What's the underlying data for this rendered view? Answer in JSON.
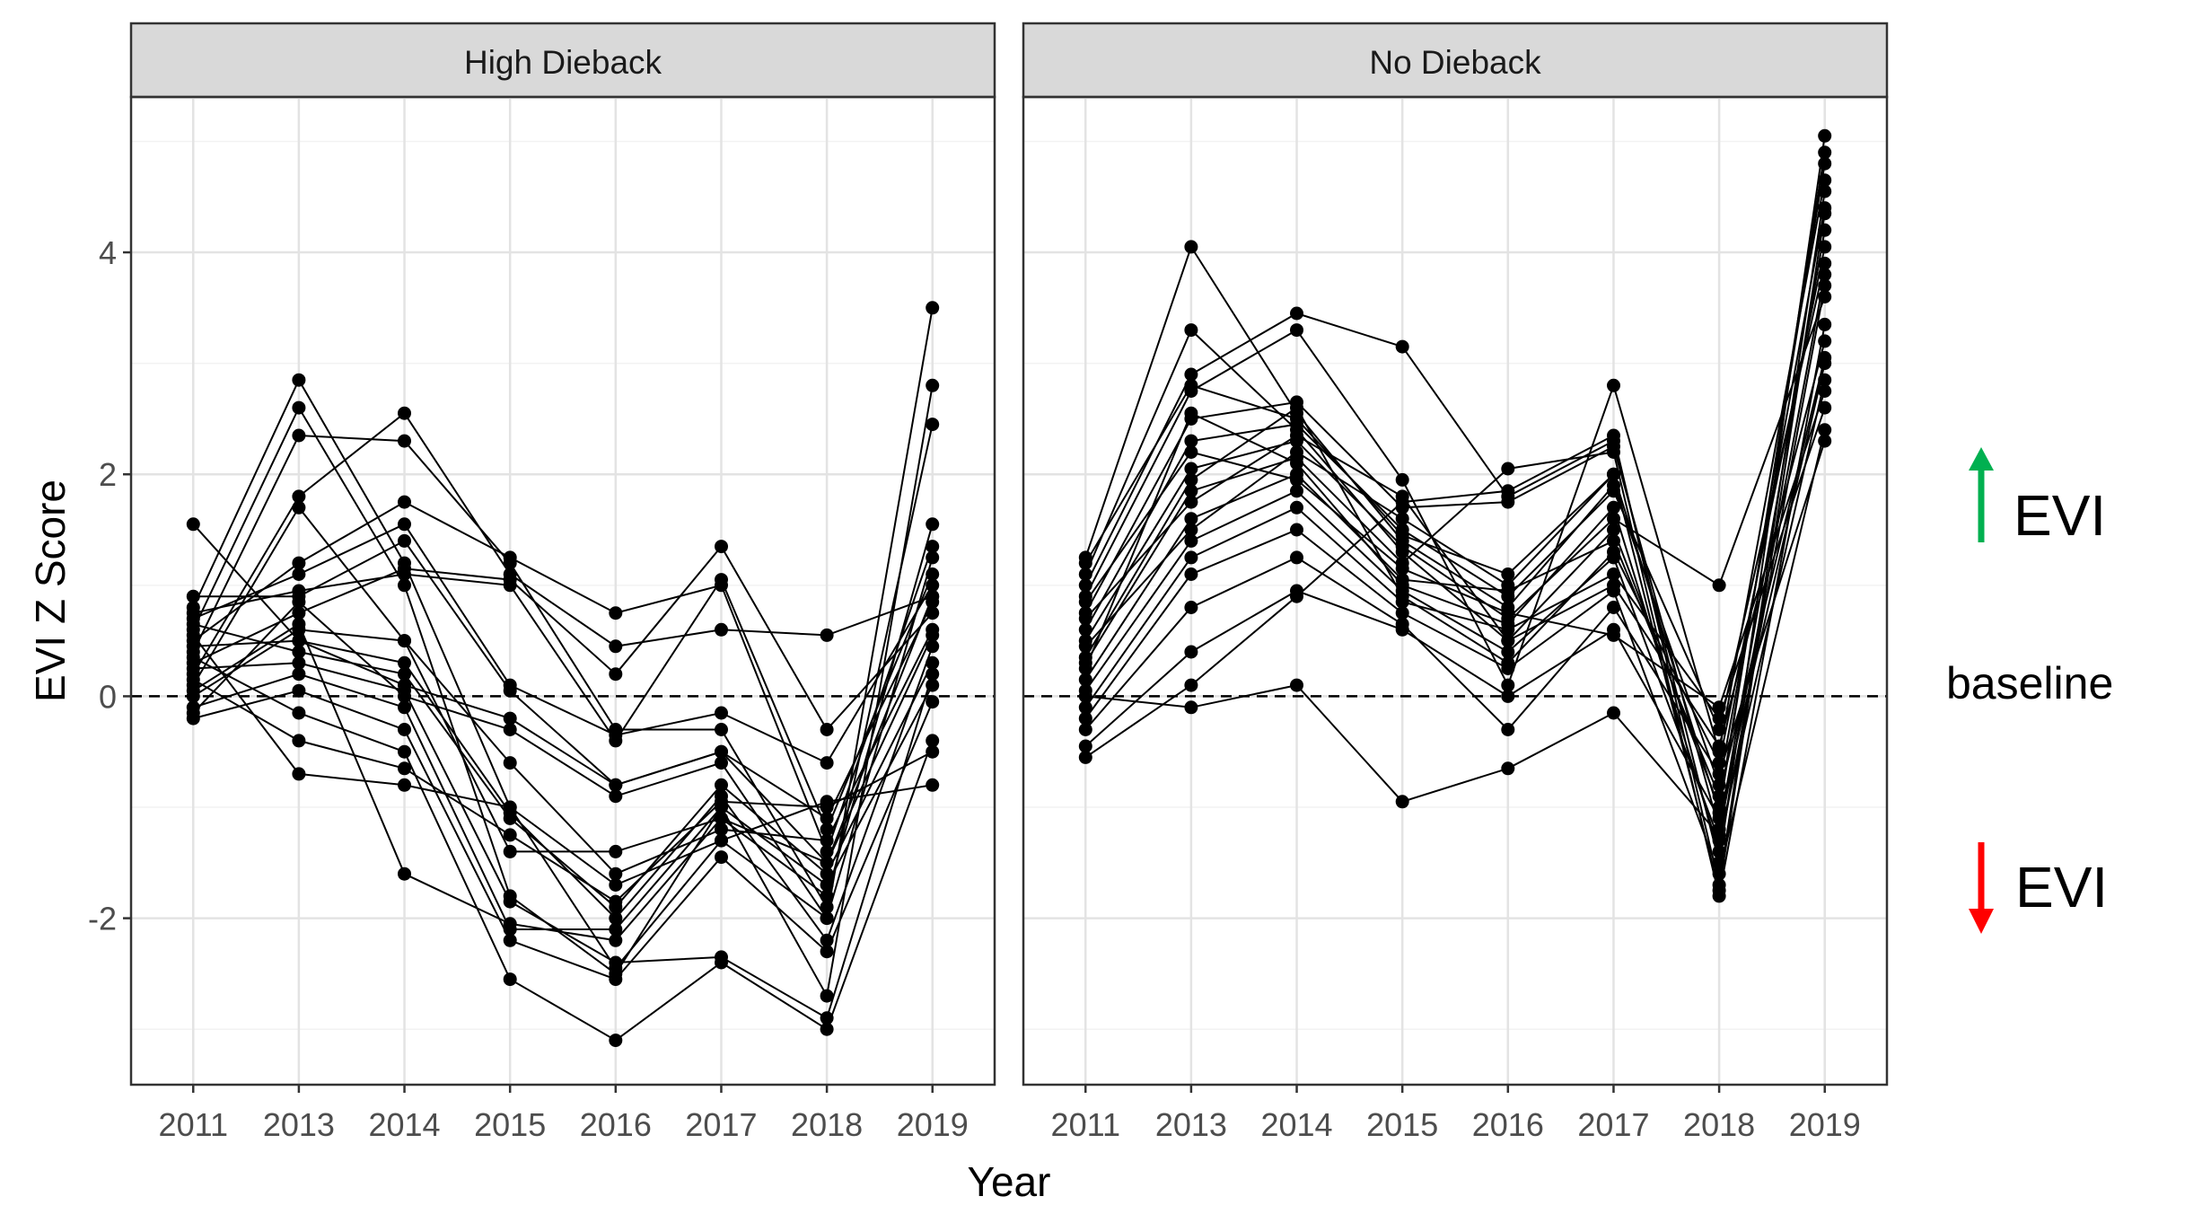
{
  "chart_data": {
    "type": "line",
    "ylabel": "EVI Z Score",
    "xlabel": "Year",
    "categories": [
      "2011",
      "2013",
      "2014",
      "2015",
      "2016",
      "2017",
      "2018",
      "2019"
    ],
    "ylim": [
      -3.5,
      5.4
    ],
    "yticks": [
      -2,
      0,
      2,
      4
    ],
    "yticks_labels": [
      "-2",
      "0",
      "2",
      "4"
    ],
    "baseline": 0,
    "grid": true,
    "line_color": "#000000",
    "marker_color": "#000000",
    "panels": [
      {
        "strip_label": "High Dieback",
        "series": [
          {
            "values": [
              1.55,
              0.5,
              0.1,
              -0.2,
              -0.8,
              -0.5,
              -1.5,
              0.9
            ]
          },
          {
            "values": [
              0.8,
              2.85,
              1.2,
              -1.0,
              -1.7,
              -1.3,
              -2.0,
              3.5
            ]
          },
          {
            "values": [
              0.6,
              2.6,
              1.0,
              -1.8,
              -2.5,
              -1.0,
              -2.7,
              2.8
            ]
          },
          {
            "values": [
              0.4,
              2.35,
              2.3,
              1.2,
              -0.3,
              -0.3,
              -1.9,
              2.45
            ]
          },
          {
            "values": [
              0.2,
              1.8,
              2.55,
              1.1,
              0.45,
              0.6,
              0.55,
              0.9
            ]
          },
          {
            "values": [
              0.1,
              1.7,
              0.5,
              -1.4,
              -1.4,
              -1.1,
              -1.8,
              1.55
            ]
          },
          {
            "values": [
              0.5,
              1.2,
              1.75,
              1.25,
              0.75,
              1.0,
              -1.4,
              1.35
            ]
          },
          {
            "values": [
              0.7,
              1.1,
              1.55,
              0.1,
              -0.35,
              -0.15,
              -0.6,
              1.0
            ]
          },
          {
            "values": [
              0.9,
              0.9,
              1.4,
              0.05,
              -0.8,
              -0.5,
              -1.1,
              0.85
            ]
          },
          {
            "values": [
              0.3,
              0.75,
              1.15,
              1.05,
              0.2,
              1.35,
              -0.3,
              0.75
            ]
          },
          {
            "values": [
              0.0,
              0.6,
              0.5,
              -0.6,
              -1.6,
              -1.2,
              -1.3,
              0.6
            ]
          },
          {
            "values": [
              0.45,
              0.5,
              0.3,
              -1.05,
              -2.0,
              -0.9,
              -2.2,
              0.45
            ]
          },
          {
            "values": [
              0.65,
              0.4,
              0.2,
              -1.1,
              -1.9,
              -0.8,
              -1.6,
              0.3
            ]
          },
          {
            "values": [
              0.25,
              0.3,
              0.05,
              -1.85,
              -2.4,
              -2.35,
              -2.9,
              0.2
            ]
          },
          {
            "values": [
              -0.1,
              0.2,
              -0.1,
              -2.1,
              -2.1,
              -1.0,
              -1.7,
              0.1
            ]
          },
          {
            "values": [
              -0.2,
              0.05,
              -0.3,
              -2.2,
              -2.55,
              -1.45,
              -2.3,
              -0.05
            ]
          },
          {
            "values": [
              0.35,
              -0.15,
              -0.5,
              -2.55,
              -3.1,
              -2.4,
              -3.0,
              -0.4
            ]
          },
          {
            "values": [
              0.15,
              -0.4,
              -0.65,
              -1.25,
              -1.85,
              -0.95,
              -1.0,
              -0.5
            ]
          },
          {
            "values": [
              0.55,
              -0.7,
              -0.8,
              -1.0,
              -2.45,
              -1.3,
              -0.95,
              -0.8
            ]
          },
          {
            "values": [
              0.75,
              0.95,
              1.1,
              1.0,
              -0.4,
              1.05,
              -1.2,
              1.1
            ]
          },
          {
            "values": [
              -0.15,
              0.85,
              0.0,
              -0.3,
              -0.9,
              -0.6,
              -2.0,
              1.25
            ]
          },
          {
            "values": [
              0.05,
              0.65,
              -1.6,
              -2.05,
              -2.2,
              -1.1,
              -1.5,
              0.55
            ]
          }
        ]
      },
      {
        "strip_label": "No Dieback",
        "series": [
          {
            "values": [
              1.25,
              4.05,
              2.55,
              1.4,
              0.8,
              1.9,
              -0.8,
              4.4
            ]
          },
          {
            "values": [
              1.1,
              3.3,
              2.4,
              1.3,
              0.5,
              1.5,
              -1.0,
              4.8
            ]
          },
          {
            "values": [
              1.0,
              2.9,
              3.45,
              3.15,
              1.8,
              2.3,
              -1.5,
              5.05
            ]
          },
          {
            "values": [
              0.9,
              2.75,
              3.3,
              1.95,
              0.1,
              2.8,
              -0.5,
              4.65
            ]
          },
          {
            "values": [
              0.75,
              2.5,
              2.65,
              1.7,
              1.75,
              2.25,
              -1.2,
              4.2
            ]
          },
          {
            "values": [
              0.6,
              2.3,
              2.45,
              1.5,
              0.9,
              1.85,
              -0.3,
              3.9
            ]
          },
          {
            "values": [
              0.5,
              2.05,
              2.3,
              1.35,
              0.7,
              1.6,
              1.0,
              3.6
            ]
          },
          {
            "values": [
              0.3,
              1.85,
              2.15,
              1.2,
              2.05,
              2.2,
              -1.8,
              3.35
            ]
          },
          {
            "values": [
              0.15,
              1.6,
              2.0,
              1.05,
              0.95,
              1.4,
              -0.9,
              3.05
            ]
          },
          {
            "values": [
              0.05,
              1.4,
              1.85,
              0.95,
              0.4,
              1.25,
              -1.3,
              2.85
            ]
          },
          {
            "values": [
              -0.1,
              1.25,
              1.7,
              0.85,
              0.6,
              1.1,
              -0.2,
              2.6
            ]
          },
          {
            "values": [
              -0.2,
              1.1,
              1.5,
              0.75,
              0.25,
              0.95,
              -1.6,
              2.4
            ]
          },
          {
            "values": [
              -0.3,
              0.8,
              1.25,
              0.65,
              -0.3,
              0.8,
              -0.7,
              2.3
            ]
          },
          {
            "values": [
              -0.45,
              0.4,
              0.95,
              0.6,
              0.0,
              0.6,
              -1.1,
              3.0
            ]
          },
          {
            "values": [
              -0.55,
              0.1,
              0.9,
              1.75,
              1.85,
              2.35,
              -1.7,
              4.55
            ]
          },
          {
            "values": [
              0.0,
              -0.1,
              0.1,
              -0.95,
              -0.65,
              -0.15,
              -1.25,
              3.8
            ]
          },
          {
            "values": [
              0.25,
              2.55,
              2.1,
              1.0,
              0.65,
              1.7,
              -1.4,
              3.7
            ]
          },
          {
            "values": [
              0.35,
              1.95,
              2.6,
              0.9,
              0.3,
              1.3,
              -0.6,
              4.05
            ]
          },
          {
            "values": [
              0.45,
              1.5,
              2.2,
              1.6,
              1.0,
              2.0,
              -1.75,
              4.35
            ]
          },
          {
            "values": [
              0.7,
              1.75,
              2.35,
              1.8,
              0.5,
              1.0,
              -0.45,
              3.2
            ]
          },
          {
            "values": [
              0.85,
              2.2,
              1.95,
              1.15,
              0.75,
              0.55,
              -0.1,
              2.75
            ]
          },
          {
            "values": [
              1.2,
              2.8,
              2.5,
              1.45,
              1.1,
              2.0,
              -1.05,
              4.9
            ]
          }
        ]
      }
    ],
    "annotations": {
      "up_label": "EVI",
      "baseline_label": "baseline",
      "down_label": "EVI",
      "up_arrow_color": "#00b050",
      "down_arrow_color": "#ff0000"
    }
  }
}
